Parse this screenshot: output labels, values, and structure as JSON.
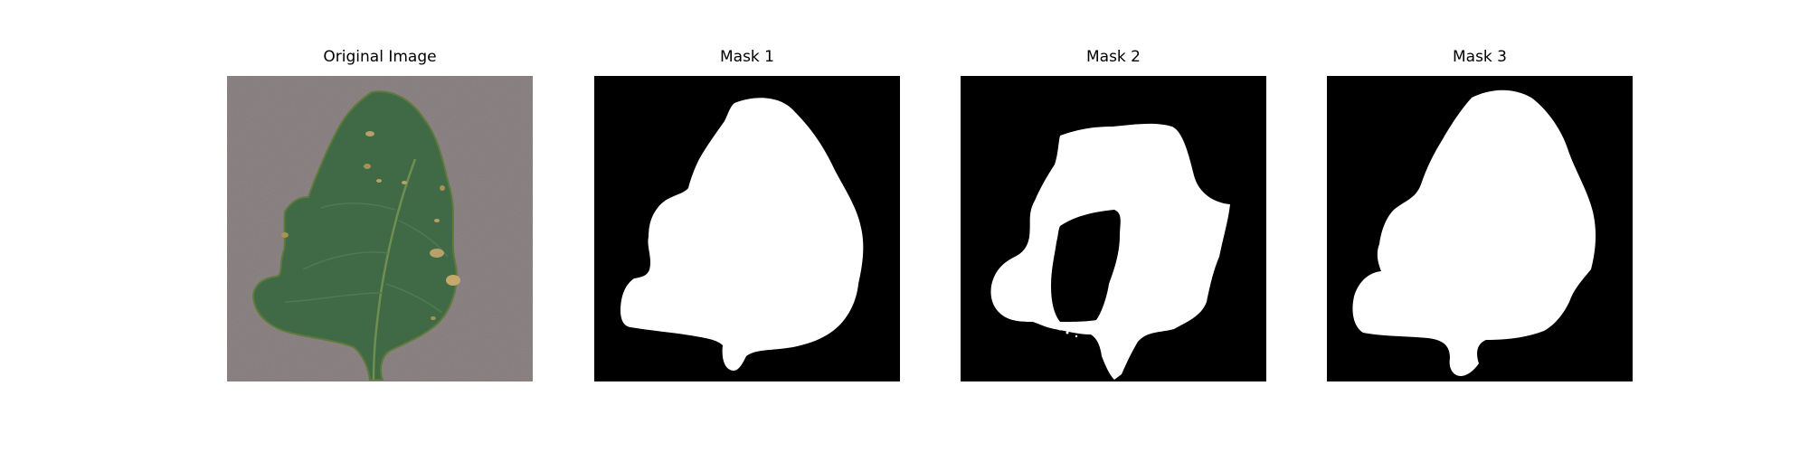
{
  "panels": [
    {
      "title": "Original Image",
      "kind": "photo"
    },
    {
      "title": "Mask 1",
      "kind": "mask"
    },
    {
      "title": "Mask 2",
      "kind": "mask"
    },
    {
      "title": "Mask 3",
      "kind": "mask"
    }
  ],
  "colors": {
    "background_photo": "#8f8586",
    "leaf": "#3f6a45",
    "leaf_dark": "#2f5235",
    "leaf_spot": "#b7a06a",
    "mask_foreground": "#ffffff",
    "mask_background": "#000000"
  }
}
